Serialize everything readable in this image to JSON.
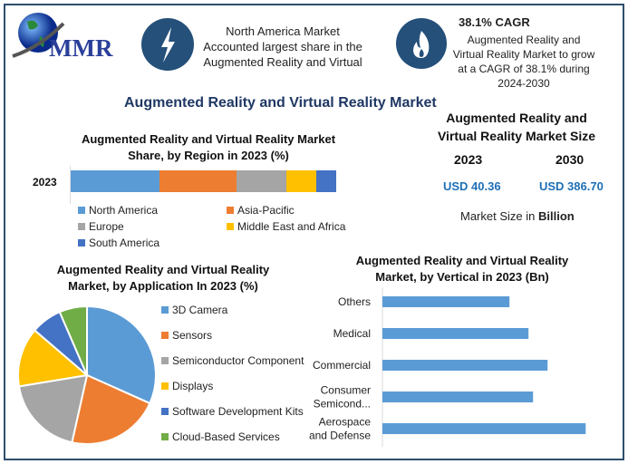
{
  "logo": {
    "text": "MMR"
  },
  "header": {
    "box1": {
      "icon": "lightning-icon",
      "lines": [
        "North America Market",
        "Accounted largest share in the",
        "Augmented Reality and Virtual"
      ]
    },
    "box2": {
      "icon": "flame-icon",
      "title": "38.1% CAGR",
      "lines": [
        "Augmented Reality and",
        "Virtual Reality Market to grow",
        "at a CAGR of 38.1% during",
        "2024-2030"
      ]
    }
  },
  "main_title": "Augmented Reality and Virtual Reality Market",
  "market_size": {
    "title_lines": [
      "Augmented Reality and",
      "Virtual Reality Market Size"
    ],
    "years": [
      "2023",
      "2030"
    ],
    "values": [
      "USD 40.36",
      "USD 386.70"
    ],
    "note_prefix": "Market Size in ",
    "note_unit": "Billion",
    "value_color": "#1f6fb5"
  },
  "chart_data": [
    {
      "type": "bar",
      "orientation": "horizontal-stacked",
      "title": "Augmented Reality and Virtual Reality Market Share, by Region in 2023 (%)",
      "title_lines": [
        "Augmented Reality and Virtual Reality Market",
        "Share, by Region in 2023 (%)"
      ],
      "categories": [
        "2023"
      ],
      "series": [
        {
          "name": "North America",
          "values": [
            33.4
          ],
          "color": "#5b9bd5"
        },
        {
          "name": "Asia-Pacific",
          "values": [
            29.0
          ],
          "color": "#ed7d31"
        },
        {
          "name": "Europe",
          "values": [
            18.8
          ],
          "color": "#a5a5a5"
        },
        {
          "name": "Middle East and Africa",
          "values": [
            11.3
          ],
          "color": "#ffc000"
        },
        {
          "name": "South America",
          "values": [
            7.5
          ],
          "color": "#4472c4"
        }
      ],
      "legend": "bottom"
    },
    {
      "type": "pie",
      "title": "Augmented Reality and Virtual Reality Market, by Application In 2023 (%)",
      "title_lines": [
        "Augmented Reality and Virtual Reality",
        "Market, by Application In 2023 (%)"
      ],
      "categories": [
        "3D Camera",
        "Sensors",
        "Semiconductor Component",
        "Displays",
        "Software Development Kits",
        "Cloud-Based Services"
      ],
      "values": [
        31.7,
        21.8,
        18.9,
        13.9,
        7.2,
        6.5
      ],
      "colors": [
        "#5b9bd5",
        "#ed7d31",
        "#a5a5a5",
        "#ffc000",
        "#4472c4",
        "#70ad47"
      ],
      "legend": "right"
    },
    {
      "type": "bar",
      "orientation": "horizontal",
      "title": "Augmented Reality and Virtual Reality Market, by Vertical in 2023 (Bn)",
      "title_lines": [
        "Augmented Reality and Virtual Reality",
        "Market, by Vertical in 2023 (Bn)"
      ],
      "categories": [
        "Others",
        "Medical",
        "Commercial",
        "Consumer Semicond...",
        "Aerospace and Defense"
      ],
      "category_lines": [
        [
          "Others"
        ],
        [
          "Medical"
        ],
        [
          "Commercial"
        ],
        [
          "Consumer",
          "Semicond..."
        ],
        [
          "Aerospace",
          "and Defense"
        ]
      ],
      "values": [
        140,
        161,
        182,
        166,
        224
      ],
      "color": "#5b9bd5"
    }
  ]
}
